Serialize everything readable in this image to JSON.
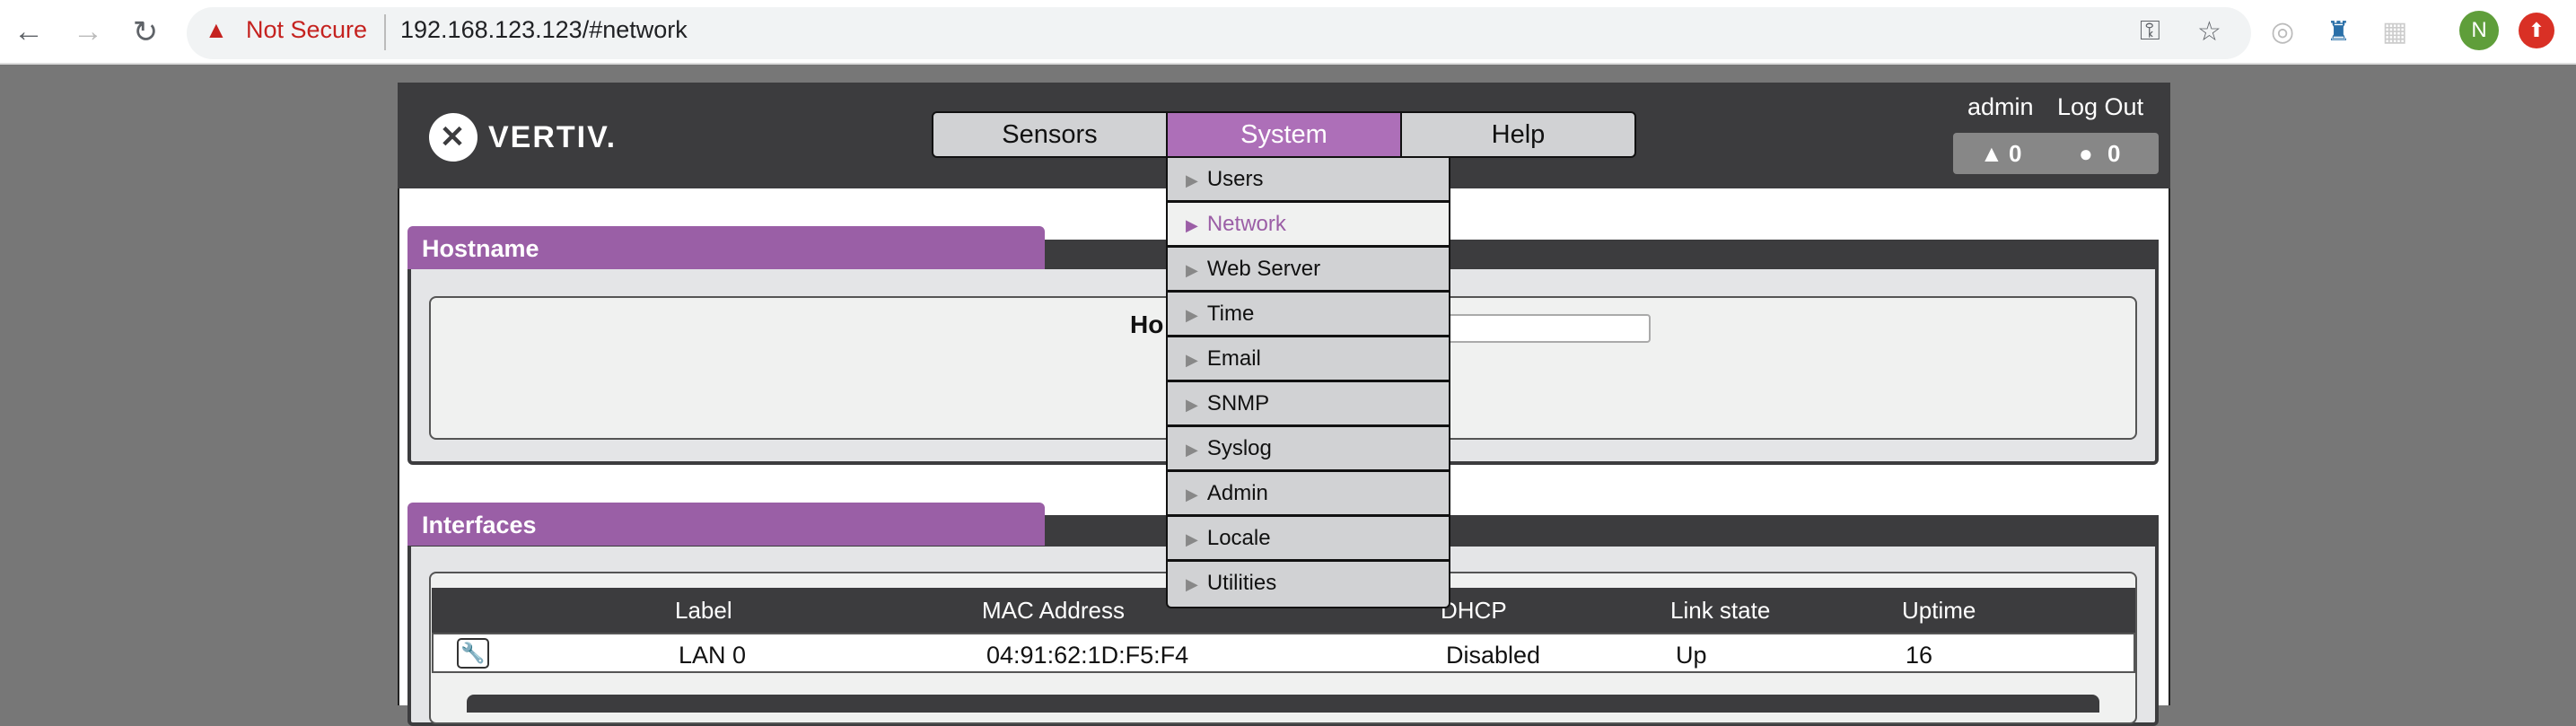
{
  "browser": {
    "security_label": "Not Secure",
    "url": "192.168.123.123/#network",
    "profile_initial": "N"
  },
  "header": {
    "logo": "VERTIV.",
    "nav": [
      {
        "label": "Sensors"
      },
      {
        "label": "System"
      },
      {
        "label": "Help"
      }
    ],
    "active_tab": "System",
    "user": "admin",
    "logout": "Log Out",
    "warning_count": "0",
    "alert_count": "0"
  },
  "system_menu": {
    "items": [
      {
        "label": "Users"
      },
      {
        "label": "Network"
      },
      {
        "label": "Web Server"
      },
      {
        "label": "Time"
      },
      {
        "label": "Email"
      },
      {
        "label": "SNMP"
      },
      {
        "label": "Syslog"
      },
      {
        "label": "Admin"
      },
      {
        "label": "Locale"
      },
      {
        "label": "Utilities"
      }
    ],
    "selected": "Network"
  },
  "hostname_panel": {
    "title": "Hostname",
    "field_label_visible": "Ho",
    "value": ""
  },
  "interfaces_panel": {
    "title": "Interfaces",
    "columns": [
      "Label",
      "MAC Address",
      "DHCP",
      "Link state",
      "Uptime"
    ],
    "rows": [
      {
        "label": "LAN 0",
        "mac": "04:91:62:1D:F5:F4",
        "dhcp": "Disabled",
        "link_state": "Up",
        "uptime": "16"
      }
    ]
  },
  "colors": {
    "accent": "#9a5fa6",
    "active_tab": "#ad6fb8",
    "header": "#3c3c3e"
  }
}
